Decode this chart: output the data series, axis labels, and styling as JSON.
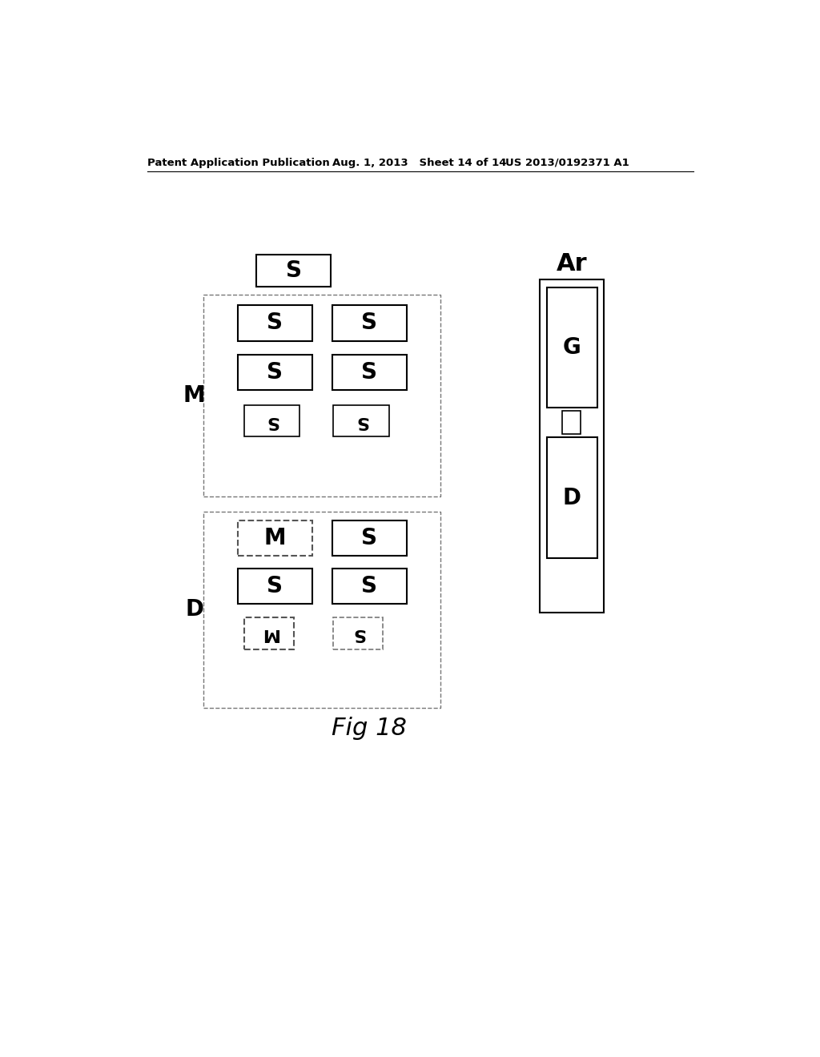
{
  "background_color": "#ffffff",
  "header_left": "Patent Application Publication",
  "header_mid": "Aug. 1, 2013   Sheet 14 of 14",
  "header_right": "US 2013/0192371 A1",
  "figure_label": "Fig 18",
  "header_fontsize": 9.5
}
